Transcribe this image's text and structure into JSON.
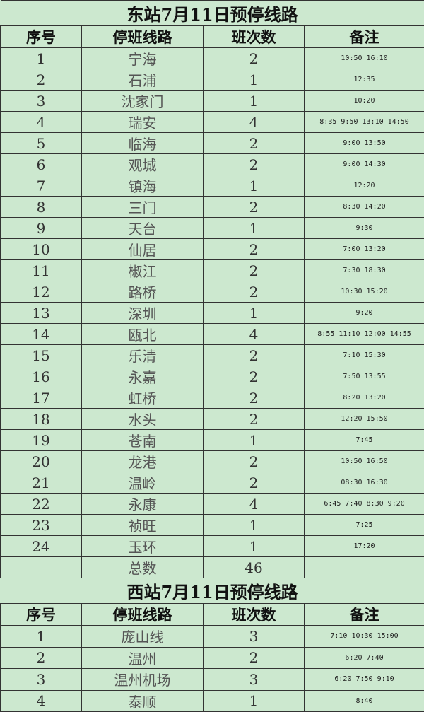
{
  "colors": {
    "background": "#cce8cf",
    "border": "#333333"
  },
  "headers": [
    "序号",
    "停班线路",
    "班次数",
    "备注"
  ],
  "east": {
    "title": "东站7月11日预停线路",
    "rows": [
      [
        "1",
        "宁海",
        "2",
        "10:50 16:10"
      ],
      [
        "2",
        "石浦",
        "1",
        "12:35"
      ],
      [
        "3",
        "沈家门",
        "1",
        "10:20"
      ],
      [
        "4",
        "瑞安",
        "4",
        "8:35 9:50 13:10 14:50"
      ],
      [
        "5",
        "临海",
        "2",
        "9:00 13:50"
      ],
      [
        "6",
        "观城",
        "2",
        "9:00 14:30"
      ],
      [
        "7",
        "镇海",
        "1",
        "12:20"
      ],
      [
        "8",
        "三门",
        "2",
        "8:30 14:20"
      ],
      [
        "9",
        "天台",
        "1",
        "9:30"
      ],
      [
        "10",
        "仙居",
        "2",
        "7:00 13:20"
      ],
      [
        "11",
        "椒江",
        "2",
        "7:30 18:30"
      ],
      [
        "12",
        "路桥",
        "2",
        "10:30 15:20"
      ],
      [
        "13",
        "深圳",
        "1",
        "9:20"
      ],
      [
        "14",
        "瓯北",
        "4",
        "8:55 11:10 12:00 14:55"
      ],
      [
        "15",
        "乐清",
        "2",
        "7:10 15:30"
      ],
      [
        "16",
        "永嘉",
        "2",
        "7:50 13:55"
      ],
      [
        "17",
        "虹桥",
        "2",
        "8:20 13:20"
      ],
      [
        "18",
        "水头",
        "2",
        "12:20 15:50"
      ],
      [
        "19",
        "苍南",
        "1",
        "7:45"
      ],
      [
        "20",
        "龙港",
        "2",
        "10:50 16:50"
      ],
      [
        "21",
        "温岭",
        "2",
        "08:30 16:30"
      ],
      [
        "22",
        "永康",
        "4",
        "6:45 7:40 8:30 9:20"
      ],
      [
        "23",
        "祯旺",
        "1",
        "7:25"
      ],
      [
        "24",
        "玉环",
        "1",
        "17:20"
      ]
    ],
    "total_label": "总数",
    "total": "46"
  },
  "west": {
    "title": "西站7月11日预停线路",
    "rows": [
      [
        "1",
        "庞山线",
        "3",
        "7:10 10:30 15:00"
      ],
      [
        "2",
        "温州",
        "2",
        "6:20 7:40"
      ],
      [
        "3",
        "温州机场",
        "3",
        "6:20 7:50 9:10"
      ],
      [
        "4",
        "泰顺",
        "1",
        "8:40"
      ]
    ]
  }
}
